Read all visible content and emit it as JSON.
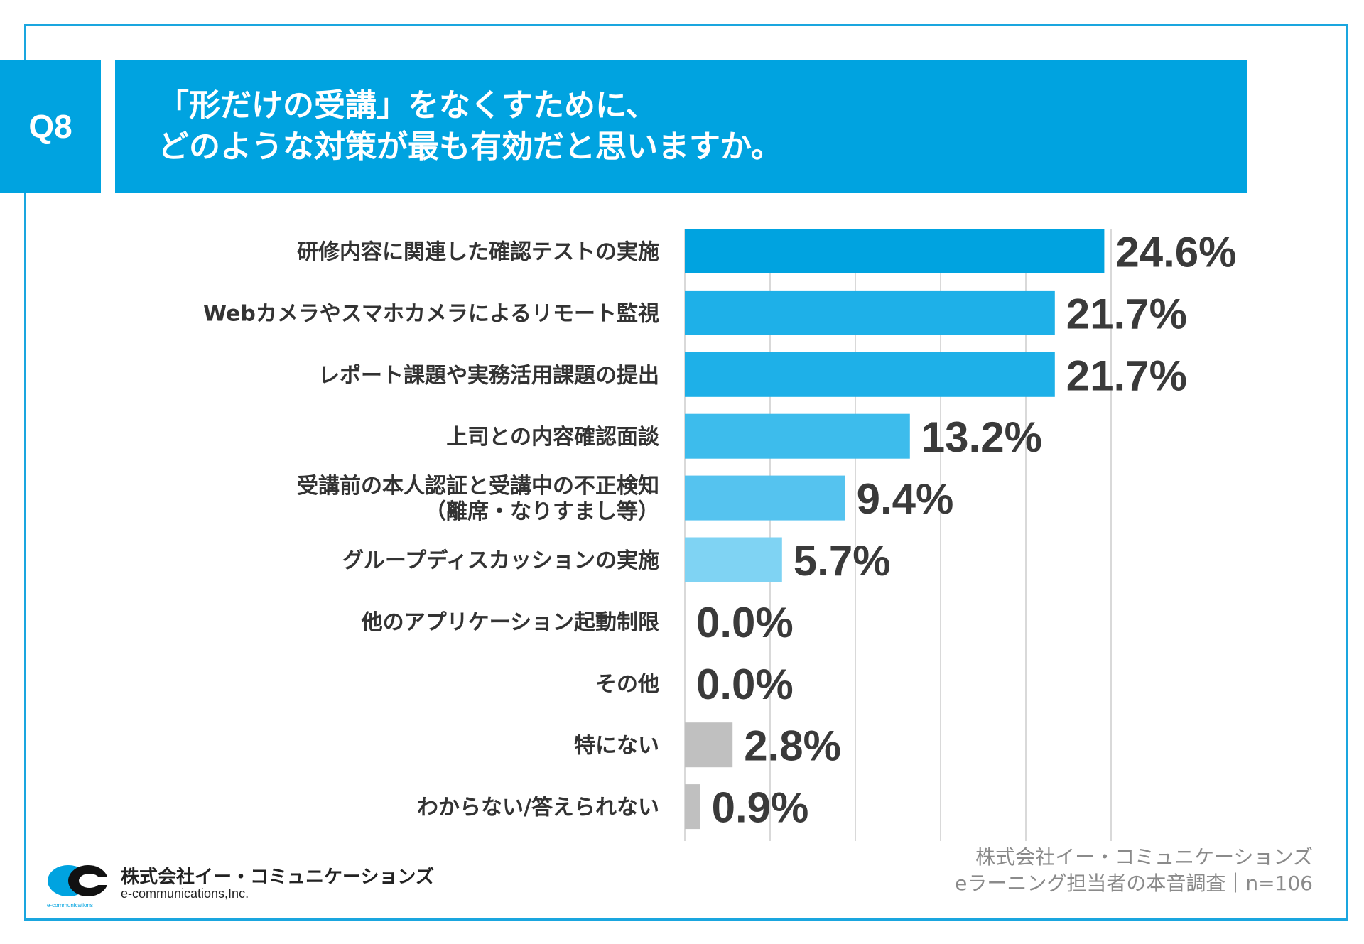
{
  "header": {
    "badge": "Q8",
    "question_line1": "「形だけの受講」をなくすために、",
    "question_line2": "どのような対策が最も有効だと思いますか。"
  },
  "chart_data": {
    "type": "bar",
    "orientation": "horizontal",
    "categories": [
      [
        "研修内容に関連した確認テストの実施"
      ],
      [
        "Webカメラやスマホカメラによるリモート監視"
      ],
      [
        "レポート課題や実務活用課題の提出"
      ],
      [
        "上司との内容確認面談"
      ],
      [
        "受講前の本人認証と受講中の不正検知",
        "（離席・なりすまし等）"
      ],
      [
        "グループディスカッションの実施"
      ],
      [
        "他のアプリケーション起動制限"
      ],
      [
        "その他"
      ],
      [
        "特にない"
      ],
      [
        "わからない/答えられない"
      ]
    ],
    "values": [
      24.6,
      21.7,
      21.7,
      13.2,
      9.4,
      5.7,
      0.0,
      0.0,
      2.8,
      0.9
    ],
    "value_labels": [
      "24.6%",
      "21.7%",
      "21.7%",
      "13.2%",
      "9.4%",
      "5.7%",
      "0.0%",
      "0.0%",
      "2.8%",
      "0.9%"
    ],
    "colors": [
      "#00a3e0",
      "#1eb0e8",
      "#1eb0e8",
      "#3dbcec",
      "#55c3ef",
      "#7fd3f3",
      "#7fd3f3",
      "#7fd3f3",
      "#c0c0c0",
      "#c0c0c0"
    ],
    "xlim": [
      0,
      30
    ],
    "grid": true,
    "unit": "%"
  },
  "footer": {
    "source_line1": "株式会社イー・コミュニケーションズ",
    "source_line2": "eラーニング担当者の本音調査｜n=106"
  },
  "logo": {
    "jp_name": "株式会社イー・コミュニケーションズ",
    "en_name": "e-communications,Inc.",
    "tiny_text": "e-communications"
  }
}
